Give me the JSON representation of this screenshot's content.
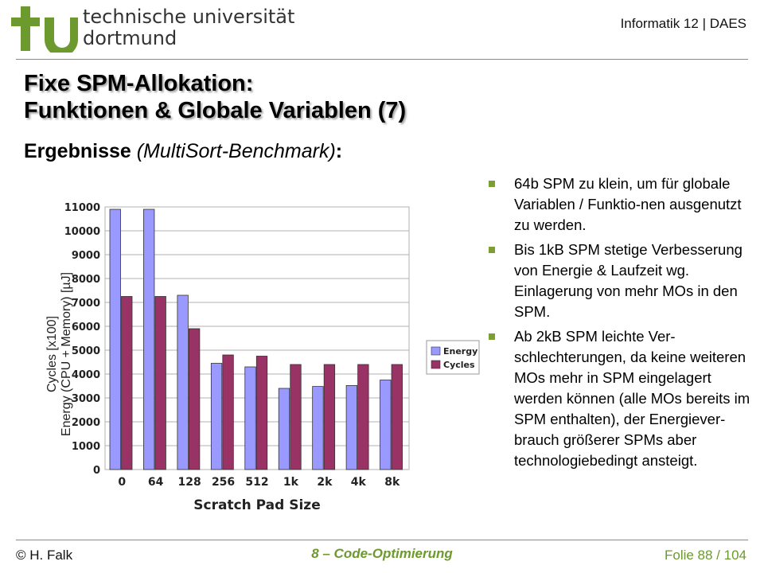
{
  "header": {
    "university_line1": "technische universität",
    "university_line2": "dortmund",
    "institute": "Informatik 12 | DAES",
    "logo_icon": "tu-logo-icon",
    "brand_color": "#6c9a2e"
  },
  "slide": {
    "title_line1": "Fixe SPM-Allokation:",
    "title_line2": "Funktionen & Globale Variablen (7)",
    "subtitle_main": "Ergebnisse ",
    "subtitle_paren": "(MultiSort-Benchmark)",
    "subtitle_colon": ":"
  },
  "bullets": [
    {
      "text": "64b SPM zu klein, um für globale Variablen / Funktio-nen ausgenutzt zu werden."
    },
    {
      "text": "Bis 1kB SPM stetige Verbesserung von Energie & Laufzeit wg. Einlagerung von mehr MOs in den SPM."
    },
    {
      "text": "Ab 2kB SPM leichte Ver-schlechterungen, da keine weiteren MOs mehr in SPM eingelagert werden können (alle MOs bereits im SPM enthalten), der Energiever-brauch größerer SPMs aber technologiebedingt ansteigt."
    }
  ],
  "footer": {
    "author": "© H. Falk",
    "chapter": "8 – Code-Optimierung",
    "slide_number": "Folie 88 / 104"
  },
  "chart_data": {
    "type": "bar",
    "xlabel": "Scratch Pad Size",
    "ylabel_line1": "Cycles [x100]",
    "ylabel_line2": "Energy (CPU + Memory) [µJ]",
    "categories": [
      "0",
      "64",
      "128",
      "256",
      "512",
      "1k",
      "2k",
      "4k",
      "8k"
    ],
    "series": [
      {
        "name": "Energy",
        "color": "#9999ff",
        "values": [
          10900,
          10900,
          7300,
          4450,
          4300,
          3400,
          3480,
          3520,
          3750
        ]
      },
      {
        "name": "Cycles",
        "color": "#993366",
        "values": [
          7250,
          7250,
          5900,
          4800,
          4750,
          4400,
          4400,
          4400,
          4400
        ]
      }
    ],
    "ylim": [
      0,
      11000
    ],
    "yticks": [
      "0",
      "1000",
      "2000",
      "3000",
      "4000",
      "5000",
      "6000",
      "7000",
      "8000",
      "9000",
      "10000",
      "11000"
    ],
    "grid": true,
    "legend": "right"
  }
}
